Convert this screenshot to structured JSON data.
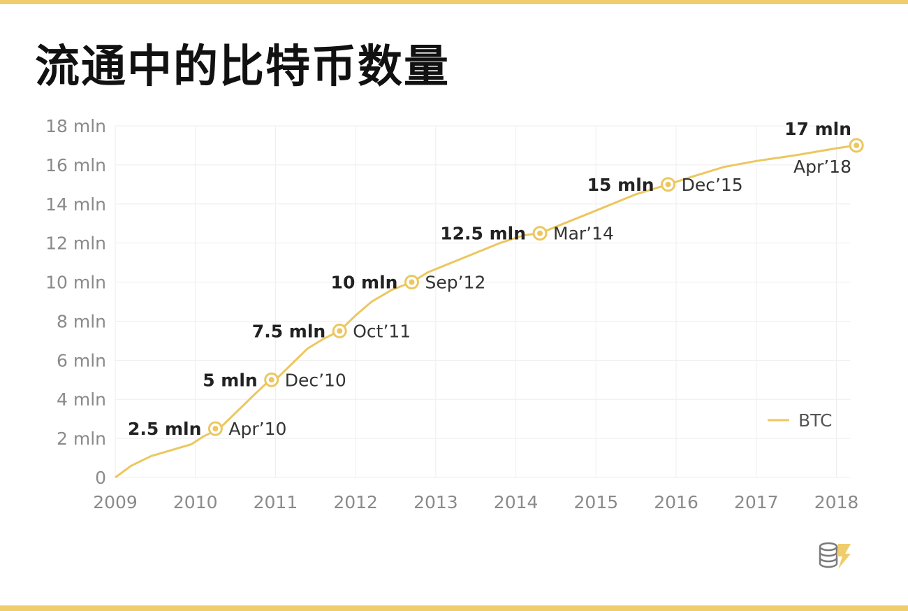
{
  "title": "流通中的比特币数量",
  "colors": {
    "accent": "#f0cd6b",
    "line": "#ecc75f",
    "grid": "#eeeeee"
  },
  "icons": {
    "logo": "coin-stack-lightning-icon"
  },
  "chart_data": {
    "type": "line",
    "title": "流通中的比特币数量",
    "xlim": [
      2009,
      2018.3
    ],
    "ylim": [
      0,
      18
    ],
    "x_ticks": [
      "2009",
      "2010",
      "2011",
      "2012",
      "2013",
      "2014",
      "2015",
      "2016",
      "2017",
      "2018"
    ],
    "y_ticks": [
      "0",
      "2 mln",
      "4 mln",
      "6 mln",
      "8 mln",
      "10 mln",
      "12 mln",
      "14 mln",
      "16 mln",
      "18 mln"
    ],
    "grid": true,
    "legend": {
      "position": "right",
      "entries": [
        "BTC"
      ]
    },
    "series": [
      {
        "name": "BTC",
        "points": [
          [
            2009.0,
            0
          ],
          [
            2009.2,
            0.6
          ],
          [
            2009.45,
            1.1
          ],
          [
            2009.7,
            1.4
          ],
          [
            2009.95,
            1.7
          ],
          [
            2010.1,
            2.1
          ],
          [
            2010.3,
            2.5
          ],
          [
            2010.5,
            3.3
          ],
          [
            2010.7,
            4.1
          ],
          [
            2010.88,
            4.8
          ],
          [
            2011.0,
            5.0
          ],
          [
            2011.2,
            5.8
          ],
          [
            2011.4,
            6.6
          ],
          [
            2011.6,
            7.1
          ],
          [
            2011.8,
            7.5
          ],
          [
            2012.0,
            8.3
          ],
          [
            2012.2,
            9.0
          ],
          [
            2012.45,
            9.6
          ],
          [
            2012.7,
            10.0
          ],
          [
            2012.9,
            10.5
          ],
          [
            2013.2,
            11.0
          ],
          [
            2013.5,
            11.5
          ],
          [
            2013.8,
            12.0
          ],
          [
            2014.1,
            12.4
          ],
          [
            2014.3,
            12.5
          ],
          [
            2014.6,
            13.0
          ],
          [
            2014.9,
            13.5
          ],
          [
            2015.2,
            14.0
          ],
          [
            2015.5,
            14.5
          ],
          [
            2015.9,
            15.0
          ],
          [
            2016.2,
            15.4
          ],
          [
            2016.6,
            15.9
          ],
          [
            2017.0,
            16.2
          ],
          [
            2017.5,
            16.5
          ],
          [
            2018.0,
            16.85
          ],
          [
            2018.25,
            17.0
          ]
        ]
      }
    ],
    "annotations": [
      {
        "x": 2010.25,
        "y": 2.5,
        "value": "2.5 mln",
        "date": "Apr’10"
      },
      {
        "x": 2010.95,
        "y": 5.0,
        "value": "5 mln",
        "date": "Dec’10"
      },
      {
        "x": 2011.8,
        "y": 7.5,
        "value": "7.5 mln",
        "date": "Oct’11"
      },
      {
        "x": 2012.7,
        "y": 10.0,
        "value": "10 mln",
        "date": "Sep’12"
      },
      {
        "x": 2014.3,
        "y": 12.5,
        "value": "12.5 mln",
        "date": "Mar’14"
      },
      {
        "x": 2015.9,
        "y": 15.0,
        "value": "15 mln",
        "date": "Dec’15"
      },
      {
        "x": 2018.25,
        "y": 17.0,
        "value": "17 mln",
        "date": "Apr’18"
      }
    ]
  }
}
